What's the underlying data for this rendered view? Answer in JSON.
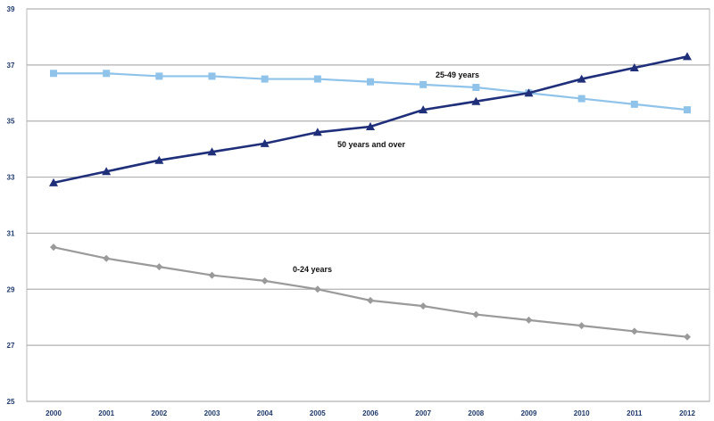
{
  "chart_data": {
    "type": "line",
    "title": "",
    "xlabel": "",
    "ylabel": "",
    "x": [
      "2000",
      "2001",
      "2002",
      "2003",
      "2004",
      "2005",
      "2006",
      "2007",
      "2008",
      "2009",
      "2010",
      "2011",
      "2012"
    ],
    "ylim": [
      25,
      39
    ],
    "yticks": [
      "25",
      "27",
      "29",
      "31",
      "33",
      "35",
      "37",
      "39"
    ],
    "grid": "horizontal",
    "legend": "none",
    "series": [
      {
        "name": "25-49 years",
        "color": "#8fc3ea",
        "marker": "square",
        "values": [
          36.7,
          36.7,
          36.6,
          36.6,
          36.5,
          36.5,
          36.4,
          36.3,
          36.2,
          36.0,
          35.8,
          35.6,
          35.4
        ]
      },
      {
        "name": "50 years and over",
        "color": "#1f2f7a",
        "marker": "triangle",
        "values": [
          32.8,
          33.2,
          33.6,
          33.9,
          34.2,
          34.6,
          34.8,
          35.4,
          35.7,
          36.0,
          36.5,
          36.9,
          37.3
        ]
      },
      {
        "name": "0-24 years",
        "color": "#9a9a9a",
        "marker": "diamond",
        "values": [
          30.5,
          30.1,
          29.8,
          29.5,
          29.3,
          29.0,
          28.6,
          28.4,
          28.1,
          27.9,
          27.7,
          27.5,
          27.3
        ]
      }
    ]
  }
}
